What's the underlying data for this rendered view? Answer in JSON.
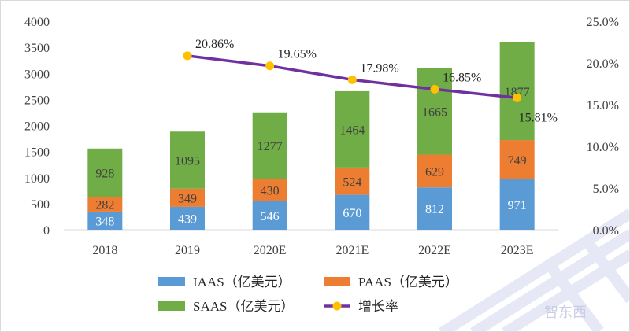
{
  "chart_data": {
    "type": "bar",
    "stacked": true,
    "categories": [
      "2018",
      "2019",
      "2020E",
      "2021E",
      "2022E",
      "2023E"
    ],
    "series": [
      {
        "name": "IAAS（亿美元）",
        "values": [
          348,
          439,
          546,
          670,
          812,
          971
        ],
        "color": "#5b9bd5"
      },
      {
        "name": "PAAS（亿美元）",
        "values": [
          282,
          349,
          430,
          524,
          629,
          749
        ],
        "color": "#ed7d31"
      },
      {
        "name": "SAAS（亿美元）",
        "values": [
          928,
          1095,
          1277,
          1464,
          1665,
          1877
        ],
        "color": "#70ad47"
      }
    ],
    "line_series": {
      "name": "增长率",
      "axis": "secondary",
      "values": [
        null,
        20.86,
        19.65,
        17.98,
        16.85,
        15.81
      ],
      "labels": [
        "",
        "20.86%",
        "19.65%",
        "17.98%",
        "16.85%",
        "15.81%"
      ],
      "line_color": "#7030a0",
      "marker_color": "#ffc000"
    },
    "y_axis": {
      "min": 0,
      "max": 4000,
      "step": 500,
      "ticks": [
        "0",
        "500",
        "1000",
        "1500",
        "2000",
        "2500",
        "3000",
        "3500",
        "4000"
      ]
    },
    "y2_axis": {
      "min": 0,
      "max": 25,
      "step": 5,
      "ticks": [
        "0.0%",
        "5.0%",
        "10.0%",
        "15.0%",
        "20.0%",
        "25.0%"
      ]
    },
    "legend_position": "bottom",
    "grid": false
  },
  "watermark": {
    "text": "智东西"
  }
}
